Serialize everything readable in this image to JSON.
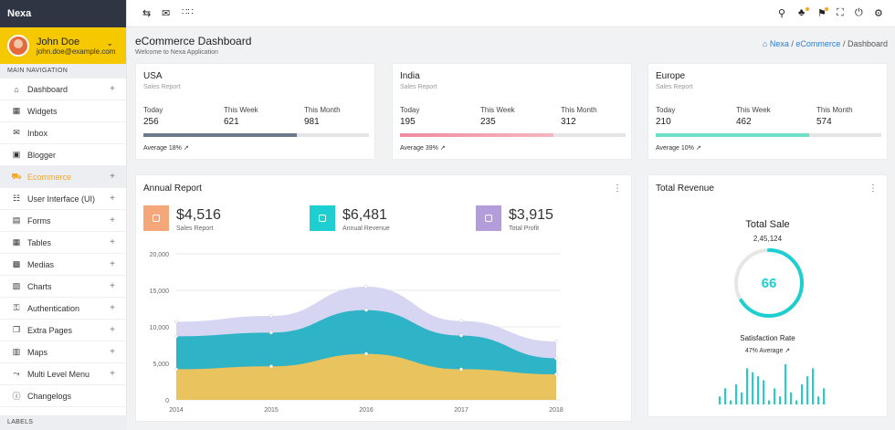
{
  "brand": "Nexa",
  "user": {
    "name": "John Doe",
    "email": "john.doe@example.com"
  },
  "sidebar": {
    "section_title": "MAIN NAVIGATION",
    "items": [
      {
        "label": "Dashboard",
        "icon": "home-icon",
        "expandable": true
      },
      {
        "label": "Widgets",
        "icon": "widgets-icon",
        "expandable": false
      },
      {
        "label": "Inbox",
        "icon": "envelope-icon",
        "expandable": false
      },
      {
        "label": "Blogger",
        "icon": "blogger-icon",
        "expandable": false
      },
      {
        "label": "Ecommerce",
        "icon": "cart-icon",
        "expandable": true,
        "active": true
      },
      {
        "label": "User Interface (UI)",
        "icon": "ui-icon",
        "expandable": true
      },
      {
        "label": "Forms",
        "icon": "forms-icon",
        "expandable": true
      },
      {
        "label": "Tables",
        "icon": "table-icon",
        "expandable": true
      },
      {
        "label": "Medias",
        "icon": "image-icon",
        "expandable": true
      },
      {
        "label": "Charts",
        "icon": "chart-icon",
        "expandable": true
      },
      {
        "label": "Authentication",
        "icon": "lock-icon",
        "expandable": true
      },
      {
        "label": "Extra Pages",
        "icon": "pages-icon",
        "expandable": true
      },
      {
        "label": "Maps",
        "icon": "map-icon",
        "expandable": true
      },
      {
        "label": "Multi Level Menu",
        "icon": "menu-icon",
        "expandable": true
      },
      {
        "label": "Changelogs",
        "icon": "info-icon",
        "expandable": false
      }
    ],
    "labels_title": "LABELS"
  },
  "header": {
    "title": "eCommerce Dashboard",
    "subtitle": "Welcome to Nexa Application",
    "breadcrumb": [
      "Nexa",
      "eCommerce",
      "Dashboard"
    ]
  },
  "kpis": [
    {
      "title": "USA",
      "sub": "Sales Report",
      "today": "256",
      "week": "621",
      "month": "981",
      "progress": 0.68,
      "color": "#6c7a8a",
      "avg": "Average 18%"
    },
    {
      "title": "India",
      "sub": "Sales Report",
      "today": "195",
      "week": "235",
      "month": "312",
      "progress": 0.68,
      "color": "#f08aa0",
      "avg": "Average 39%"
    },
    {
      "title": "Europe",
      "sub": "Sales Report",
      "today": "210",
      "week": "462",
      "month": "574",
      "progress": 0.68,
      "color": "#6fe0c8",
      "avg": "Average 10%"
    }
  ],
  "kpi_labels": {
    "today": "Today",
    "week": "This Week",
    "month": "This Month"
  },
  "annual": {
    "title": "Annual Report",
    "stats": [
      {
        "value": "$4,516",
        "label": "Sales Report",
        "color": "#f5a77a"
      },
      {
        "value": "$6,481",
        "label": "Annual Revenue",
        "color": "#1dcfd0"
      },
      {
        "value": "$3,915",
        "label": "Total Profit",
        "color": "#b39ddb"
      }
    ]
  },
  "chart_data": {
    "type": "area",
    "x": [
      "2014",
      "2015",
      "2016",
      "2017",
      "2018"
    ],
    "yticks": [
      "0",
      "5,000",
      "10,000",
      "15,000",
      "20,000"
    ],
    "ylim": [
      0,
      20000
    ],
    "series": [
      {
        "values": [
          4200,
          4600,
          6300,
          4200,
          3500
        ],
        "color": "#e8c35e"
      },
      {
        "values": [
          8700,
          9200,
          12300,
          8800,
          5700
        ],
        "color": "#2fb3c7"
      },
      {
        "values": [
          10700,
          11500,
          15500,
          10800,
          8000
        ],
        "color": "#d6d6f3"
      }
    ],
    "grid": true
  },
  "revenue": {
    "title": "Total Revenue",
    "total_sale_label": "Total Sale",
    "total_sale_value": "2,45,124",
    "gauge_value": "66",
    "gauge_fraction": 0.66,
    "gauge_color": "#1dcfd0",
    "satisfaction_label": "Satisfaction Rate",
    "satisfaction_avg": "47% Average",
    "bars": [
      2,
      4,
      1,
      5,
      3,
      9,
      8,
      7,
      6,
      1,
      4,
      2,
      10,
      3,
      1,
      5,
      7,
      9,
      2,
      4
    ]
  }
}
